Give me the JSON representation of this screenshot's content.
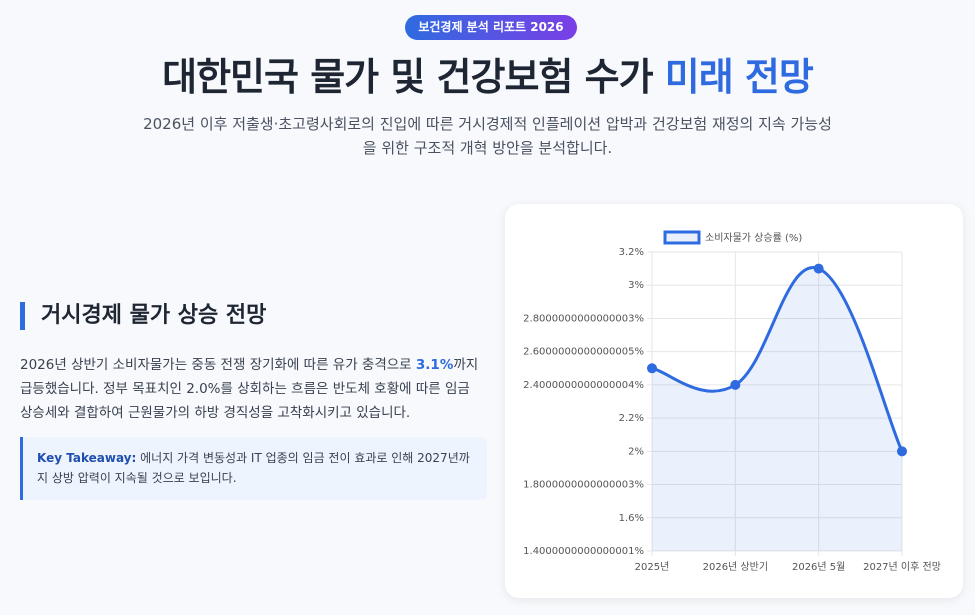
{
  "header": {
    "badge": "보건경제 분석 리포트 2026",
    "title": [
      "대한민국 물가 및 건강보험 수가 ",
      "미래 전망"
    ],
    "subtitle": "2026년 이후 저출생·초고령사회로의 진입에 따른 거시경제적 인플레이션 압박과 건강보험 재정의 지속 가능성을 위한 구조적 개혁 방안을 분석합니다."
  },
  "section": {
    "heading": "거시경제 물가 상승 전망",
    "paragraph": [
      "2026년 상반기 소비자물가는 중동 전쟁 장기화에 따른 유가 충격으로 ",
      "3.1%",
      "까지 급등했습니다. 정부 목표치인 2.0%를 상회하는 흐름은 반도체 호황에 따른 임금 상승세와 결합하여 근원물가의 하방 경직성을 고착화시키고 있습니다."
    ],
    "takeaway": {
      "label": "Key Takeaway:",
      "text": " 에너지 가격 변동성과 IT 업종의 임금 전이 효과로 인해 2027년까지 상방 압력이 지속될 것으로 보입니다."
    }
  },
  "chart_data": {
    "type": "line",
    "categories": [
      "2025년",
      "2026년 상반기",
      "2026년 5월",
      "2027년 이후 전망"
    ],
    "series": [
      {
        "name": "소비자물가 상승률 (%)",
        "color": "#2f6be0",
        "values": [
          2.5,
          2.4,
          3.1,
          2.0
        ]
      }
    ],
    "ylim": [
      1.4,
      3.2
    ],
    "yticks": [
      {
        "value": 1.4,
        "label": "1.4000000000000001%"
      },
      {
        "value": 1.6,
        "label": "1.6%"
      },
      {
        "value": 1.8,
        "label": "1.8000000000000003%"
      },
      {
        "value": 2.0,
        "label": "2%"
      },
      {
        "value": 2.2,
        "label": "2.2%"
      },
      {
        "value": 2.4,
        "label": "2.4000000000000004%"
      },
      {
        "value": 2.6,
        "label": "2.6000000000000005%"
      },
      {
        "value": 2.8,
        "label": "2.8000000000000003%"
      },
      {
        "value": 3.0,
        "label": "3%"
      },
      {
        "value": 3.2,
        "label": "3.2%"
      }
    ],
    "grid": true,
    "legend": "top"
  }
}
